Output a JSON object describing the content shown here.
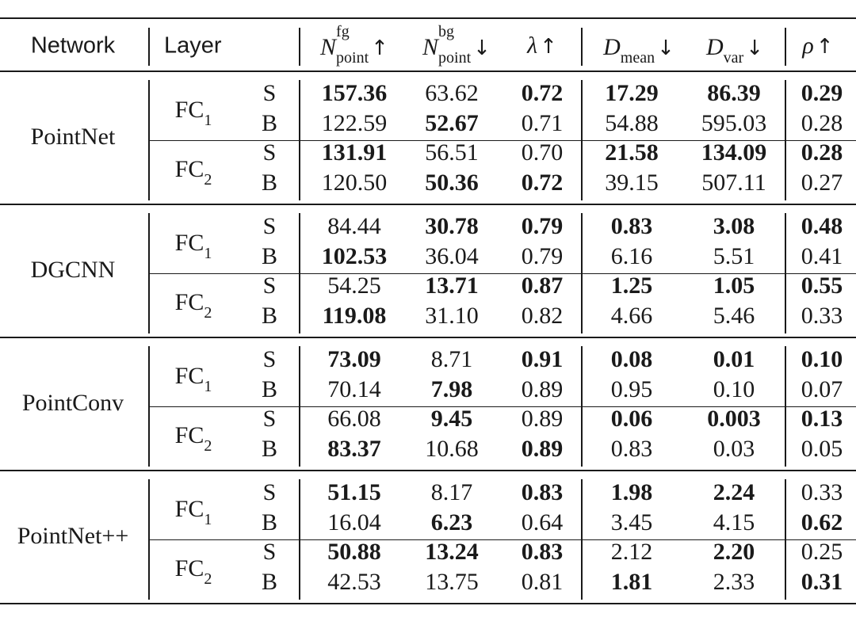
{
  "header": {
    "network": "Network",
    "layer": "Layer",
    "nfg": {
      "base": "N",
      "sup": "fg",
      "sub": "point",
      "arrow": "↑"
    },
    "nbg": {
      "base": "N",
      "sup": "bg",
      "sub": "point",
      "arrow": "↓"
    },
    "lambda": {
      "base": "λ",
      "arrow": "↑"
    },
    "dmean": {
      "base": "D",
      "sub": "mean",
      "arrow": "↓"
    },
    "dvar": {
      "base": "D",
      "sub": "var",
      "arrow": "↓"
    },
    "rho": {
      "base": "ρ",
      "arrow": "↑"
    }
  },
  "groups": [
    {
      "network": "PointNet",
      "layers": [
        {
          "layer": {
            "base": "FC",
            "sub": "1"
          },
          "rows": [
            {
              "type": "S",
              "values": [
                "157.36",
                "63.62",
                "0.72",
                "17.29",
                "86.39",
                "0.29"
              ],
              "bold": [
                true,
                false,
                true,
                true,
                true,
                true
              ]
            },
            {
              "type": "B",
              "values": [
                "122.59",
                "52.67",
                "0.71",
                "54.88",
                "595.03",
                "0.28"
              ],
              "bold": [
                false,
                true,
                false,
                false,
                false,
                false
              ]
            }
          ]
        },
        {
          "layer": {
            "base": "FC",
            "sub": "2"
          },
          "rows": [
            {
              "type": "S",
              "values": [
                "131.91",
                "56.51",
                "0.70",
                "21.58",
                "134.09",
                "0.28"
              ],
              "bold": [
                true,
                false,
                false,
                true,
                true,
                true
              ]
            },
            {
              "type": "B",
              "values": [
                "120.50",
                "50.36",
                "0.72",
                "39.15",
                "507.11",
                "0.27"
              ],
              "bold": [
                false,
                true,
                true,
                false,
                false,
                false
              ]
            }
          ]
        }
      ]
    },
    {
      "network": "DGCNN",
      "layers": [
        {
          "layer": {
            "base": "FC",
            "sub": "1"
          },
          "rows": [
            {
              "type": "S",
              "values": [
                "84.44",
                "30.78",
                "0.79",
                "0.83",
                "3.08",
                "0.48"
              ],
              "bold": [
                false,
                true,
                true,
                true,
                true,
                true
              ]
            },
            {
              "type": "B",
              "values": [
                "102.53",
                "36.04",
                "0.79",
                "6.16",
                "5.51",
                "0.41"
              ],
              "bold": [
                true,
                false,
                false,
                false,
                false,
                false
              ]
            }
          ]
        },
        {
          "layer": {
            "base": "FC",
            "sub": "2"
          },
          "rows": [
            {
              "type": "S",
              "values": [
                "54.25",
                "13.71",
                "0.87",
                "1.25",
                "1.05",
                "0.55"
              ],
              "bold": [
                false,
                true,
                true,
                true,
                true,
                true
              ]
            },
            {
              "type": "B",
              "values": [
                "119.08",
                "31.10",
                "0.82",
                "4.66",
                "5.46",
                "0.33"
              ],
              "bold": [
                true,
                false,
                false,
                false,
                false,
                false
              ]
            }
          ]
        }
      ]
    },
    {
      "network": "PointConv",
      "layers": [
        {
          "layer": {
            "base": "FC",
            "sub": "1"
          },
          "rows": [
            {
              "type": "S",
              "values": [
                "73.09",
                "8.71",
                "0.91",
                "0.08",
                "0.01",
                "0.10"
              ],
              "bold": [
                true,
                false,
                true,
                true,
                true,
                true
              ]
            },
            {
              "type": "B",
              "values": [
                "70.14",
                "7.98",
                "0.89",
                "0.95",
                "0.10",
                "0.07"
              ],
              "bold": [
                false,
                true,
                false,
                false,
                false,
                false
              ]
            }
          ]
        },
        {
          "layer": {
            "base": "FC",
            "sub": "2"
          },
          "rows": [
            {
              "type": "S",
              "values": [
                "66.08",
                "9.45",
                "0.89",
                "0.06",
                "0.003",
                "0.13"
              ],
              "bold": [
                false,
                true,
                false,
                true,
                true,
                true
              ]
            },
            {
              "type": "B",
              "values": [
                "83.37",
                "10.68",
                "0.89",
                "0.83",
                "0.03",
                "0.05"
              ],
              "bold": [
                true,
                false,
                true,
                false,
                false,
                false
              ]
            }
          ]
        }
      ]
    },
    {
      "network": "PointNet++",
      "layers": [
        {
          "layer": {
            "base": "FC",
            "sub": "1"
          },
          "rows": [
            {
              "type": "S",
              "values": [
                "51.15",
                "8.17",
                "0.83",
                "1.98",
                "2.24",
                "0.33"
              ],
              "bold": [
                true,
                false,
                true,
                true,
                true,
                false
              ]
            },
            {
              "type": "B",
              "values": [
                "16.04",
                "6.23",
                "0.64",
                "3.45",
                "4.15",
                "0.62"
              ],
              "bold": [
                false,
                true,
                false,
                false,
                false,
                true
              ]
            }
          ]
        },
        {
          "layer": {
            "base": "FC",
            "sub": "2"
          },
          "rows": [
            {
              "type": "S",
              "values": [
                "50.88",
                "13.24",
                "0.83",
                "2.12",
                "2.20",
                "0.25"
              ],
              "bold": [
                true,
                true,
                true,
                false,
                true,
                false
              ]
            },
            {
              "type": "B",
              "values": [
                "42.53",
                "13.75",
                "0.81",
                "1.81",
                "2.33",
                "0.31"
              ],
              "bold": [
                false,
                false,
                false,
                true,
                false,
                true
              ]
            }
          ]
        }
      ]
    }
  ]
}
